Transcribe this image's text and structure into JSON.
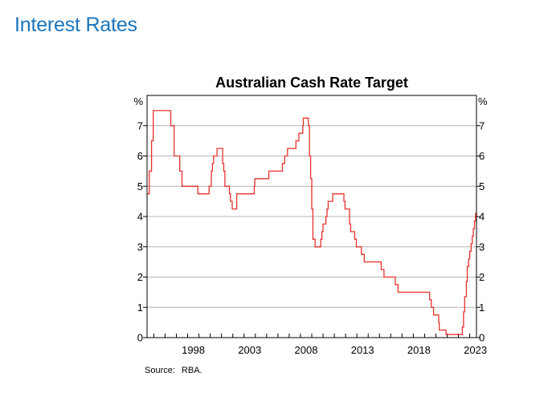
{
  "page": {
    "heading": "Interest Rates"
  },
  "source": {
    "label": "Source:",
    "value": "RBA."
  },
  "chart_data": {
    "type": "line",
    "title": "Australian Cash Rate Target",
    "xlabel": "",
    "ylabel": "%",
    "ylabel_right": "%",
    "ylim": [
      0,
      8
    ],
    "xlim": [
      1994.4,
      2023.6
    ],
    "y_ticks": [
      0,
      1,
      2,
      3,
      4,
      5,
      6,
      7
    ],
    "x_tick_labels": [
      {
        "year": 1998,
        "label": "1998"
      },
      {
        "year": 2003,
        "label": "2003"
      },
      {
        "year": 2008,
        "label": "2008"
      },
      {
        "year": 2013,
        "label": "2013"
      },
      {
        "year": 2018,
        "label": "2018"
      },
      {
        "year": 2023,
        "label": "2023"
      }
    ],
    "minor_tick_years": [
      1995,
      1996,
      1997,
      1998,
      1999,
      2000,
      2001,
      2002,
      2003,
      2004,
      2005,
      2006,
      2007,
      2008,
      2009,
      2010,
      2011,
      2012,
      2013,
      2014,
      2015,
      2016,
      2017,
      2018,
      2019,
      2020,
      2021,
      2022,
      2023
    ],
    "grid": true,
    "line_color": "#e8312c",
    "grid_color": "#b4b4b4",
    "series": [
      {
        "values": [
          [
            1994.4,
            4.75
          ],
          [
            1994.6,
            5.5
          ],
          [
            1994.8,
            6.5
          ],
          [
            1994.95,
            7.5
          ],
          [
            1996.5,
            7.0
          ],
          [
            1996.8,
            6.0
          ],
          [
            1997.3,
            5.5
          ],
          [
            1997.5,
            5.0
          ],
          [
            1998.9,
            4.75
          ],
          [
            1999.9,
            5.0
          ],
          [
            2000.1,
            5.5
          ],
          [
            2000.2,
            5.75
          ],
          [
            2000.3,
            6.0
          ],
          [
            2000.6,
            6.25
          ],
          [
            2001.1,
            5.75
          ],
          [
            2001.2,
            5.5
          ],
          [
            2001.3,
            5.0
          ],
          [
            2001.7,
            4.75
          ],
          [
            2001.8,
            4.5
          ],
          [
            2001.95,
            4.25
          ],
          [
            2002.35,
            4.75
          ],
          [
            2003.9,
            5.0
          ],
          [
            2003.95,
            5.25
          ],
          [
            2005.2,
            5.5
          ],
          [
            2006.4,
            5.75
          ],
          [
            2006.6,
            6.0
          ],
          [
            2006.85,
            6.25
          ],
          [
            2007.6,
            6.5
          ],
          [
            2007.85,
            6.75
          ],
          [
            2008.2,
            7.0
          ],
          [
            2008.25,
            7.25
          ],
          [
            2008.7,
            7.0
          ],
          [
            2008.8,
            6.0
          ],
          [
            2008.9,
            5.25
          ],
          [
            2009.0,
            4.25
          ],
          [
            2009.1,
            3.25
          ],
          [
            2009.3,
            3.0
          ],
          [
            2009.8,
            3.25
          ],
          [
            2009.9,
            3.5
          ],
          [
            2010.0,
            3.75
          ],
          [
            2010.25,
            4.0
          ],
          [
            2010.35,
            4.25
          ],
          [
            2010.45,
            4.5
          ],
          [
            2010.85,
            4.75
          ],
          [
            2011.85,
            4.5
          ],
          [
            2011.95,
            4.25
          ],
          [
            2012.35,
            3.75
          ],
          [
            2012.45,
            3.5
          ],
          [
            2012.8,
            3.25
          ],
          [
            2012.95,
            3.0
          ],
          [
            2013.4,
            2.75
          ],
          [
            2013.65,
            2.5
          ],
          [
            2015.15,
            2.25
          ],
          [
            2015.4,
            2.0
          ],
          [
            2016.4,
            1.75
          ],
          [
            2016.65,
            1.5
          ],
          [
            2019.45,
            1.25
          ],
          [
            2019.6,
            1.0
          ],
          [
            2019.8,
            0.75
          ],
          [
            2020.25,
            0.5
          ],
          [
            2020.3,
            0.25
          ],
          [
            2020.9,
            0.1
          ],
          [
            2022.35,
            0.35
          ],
          [
            2022.45,
            0.85
          ],
          [
            2022.55,
            1.35
          ],
          [
            2022.7,
            1.85
          ],
          [
            2022.78,
            2.35
          ],
          [
            2022.9,
            2.6
          ],
          [
            2023.0,
            2.85
          ],
          [
            2023.12,
            3.1
          ],
          [
            2023.22,
            3.35
          ],
          [
            2023.32,
            3.6
          ],
          [
            2023.42,
            3.85
          ],
          [
            2023.52,
            4.1
          ],
          [
            2023.6,
            4.1
          ]
        ]
      }
    ]
  }
}
